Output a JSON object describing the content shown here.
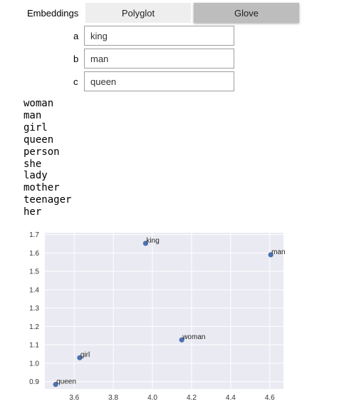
{
  "toggle": {
    "label": "Embeddings",
    "options": [
      "Polyglot",
      "Glove"
    ],
    "selected": "Glove"
  },
  "inputs": [
    {
      "label": "a",
      "value": "king"
    },
    {
      "label": "b",
      "value": "man"
    },
    {
      "label": "c",
      "value": "queen"
    }
  ],
  "results": [
    "woman",
    "man",
    "girl",
    "queen",
    "person",
    "she",
    "lady",
    "mother",
    "teenager",
    "her"
  ],
  "chart_data": {
    "type": "scatter",
    "title": "",
    "xlabel": "",
    "ylabel": "",
    "xlim": [
      3.45,
      4.67
    ],
    "ylim": [
      0.86,
      1.71
    ],
    "xticks": [
      "3.6",
      "3.8",
      "4.0",
      "4.2",
      "4.4",
      "4.6"
    ],
    "yticks": [
      "0.9",
      "1.0",
      "1.1",
      "1.2",
      "1.3",
      "1.4",
      "1.5",
      "1.6",
      "1.7"
    ],
    "grid": true,
    "marker_color": "#4c72b0",
    "points": [
      {
        "label": "king",
        "x": 3.965,
        "y": 1.652
      },
      {
        "label": "man",
        "x": 4.605,
        "y": 1.59
      },
      {
        "label": "woman",
        "x": 4.15,
        "y": 1.127
      },
      {
        "label": "girl",
        "x": 3.628,
        "y": 1.03
      },
      {
        "label": "queen",
        "x": 3.505,
        "y": 0.885
      }
    ]
  }
}
